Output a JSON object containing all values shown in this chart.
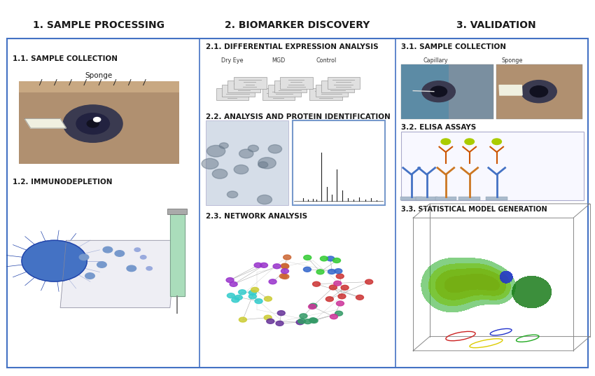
{
  "bg_color": "#ffffff",
  "border_color": "#4472c4",
  "header_text_color": "#1a1a1a",
  "section_headers": [
    "1. SAMPLE PROCESSING",
    "2. BIOMARKER DISCOVERY",
    "3. VALIDATION"
  ],
  "col_dividers": [
    0.335,
    0.665
  ],
  "sub_labels": {
    "col1": [
      "1.1. SAMPLE COLLECTION",
      "Sponge",
      "1.2. IMMUNODEPLETION"
    ],
    "col2": [
      "2.1. DIFFERENTIAL EXPRESSION ANALYSIS",
      "Dry Eye",
      "MGD",
      "Control",
      "2.2. ANALYSIS AND PROTEIN IDENTIFICATION",
      "2.3. NETWORK ANALYSIS"
    ],
    "col3": [
      "3.1. SAMPLE COLLECTION",
      "Capillary",
      "Sponge",
      "3.2. ELISA ASSAYS",
      "3.3. STATISTICAL MODEL GENERATION"
    ]
  },
  "label_color": "#1a1a1a",
  "label_fontsize": 7.5,
  "header_fontsize": 10,
  "box_border": "#4472c4"
}
